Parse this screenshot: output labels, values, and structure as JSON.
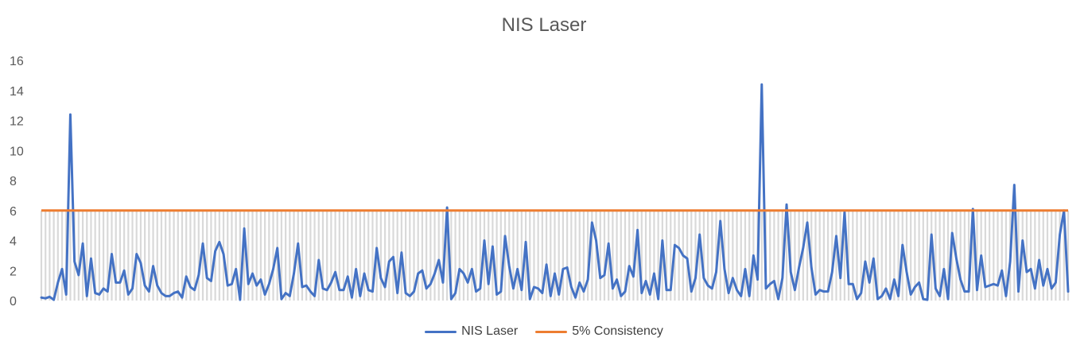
{
  "chart_data": {
    "type": "line",
    "title": "NIS Laser",
    "xlabel": "",
    "ylabel": "",
    "ylim": [
      0,
      16
    ],
    "yticks": [
      0,
      2,
      4,
      6,
      8,
      10,
      12,
      14,
      16
    ],
    "grid": false,
    "legend": "bottom",
    "colors": {
      "nis_laser": "#4472C4",
      "consistency": "#ED7D31",
      "bars": "#D9D9D9"
    },
    "series": [
      {
        "name": "NIS Laser",
        "values": [
          0.2,
          0.15,
          0.25,
          0.05,
          1.2,
          2.1,
          0.4,
          12.4,
          2.6,
          1.7,
          3.8,
          0.3,
          2.8,
          0.5,
          0.4,
          0.8,
          0.6,
          3.1,
          1.2,
          1.2,
          2.0,
          0.4,
          0.8,
          3.1,
          2.5,
          1.0,
          0.6,
          2.3,
          1.0,
          0.5,
          0.3,
          0.3,
          0.5,
          0.6,
          0.2,
          1.6,
          0.9,
          0.7,
          1.7,
          3.8,
          1.5,
          1.3,
          3.3,
          3.9,
          3.1,
          1.0,
          1.1,
          2.1,
          0.05,
          4.8,
          1.1,
          1.8,
          1.0,
          1.4,
          0.4,
          1.1,
          2.1,
          3.5,
          0.1,
          0.5,
          0.3,
          1.8,
          3.8,
          0.9,
          1.0,
          0.6,
          0.3,
          2.7,
          0.8,
          0.7,
          1.2,
          1.9,
          0.7,
          0.7,
          1.6,
          0.2,
          2.1,
          0.3,
          1.8,
          0.7,
          0.6,
          3.5,
          1.5,
          0.9,
          2.6,
          2.9,
          0.5,
          3.2,
          0.5,
          0.3,
          0.6,
          1.8,
          2.0,
          0.8,
          1.1,
          1.8,
          2.7,
          1.2,
          6.2,
          0.1,
          0.5,
          2.1,
          1.8,
          1.2,
          2.1,
          0.6,
          0.8,
          4.0,
          1.1,
          3.6,
          0.4,
          0.6,
          4.3,
          2.3,
          0.8,
          2.1,
          0.7,
          3.9,
          0.1,
          0.9,
          0.8,
          0.5,
          2.4,
          0.3,
          1.8,
          0.4,
          2.1,
          2.2,
          0.9,
          0.2,
          1.2,
          0.6,
          1.4,
          5.2,
          4.0,
          1.5,
          1.7,
          3.8,
          0.8,
          1.4,
          0.3,
          0.6,
          2.3,
          1.6,
          4.7,
          0.5,
          1.3,
          0.4,
          1.8,
          0.1,
          4.0,
          0.7,
          0.7,
          3.7,
          3.5,
          3.0,
          2.8,
          0.6,
          1.5,
          4.4,
          1.5,
          1.0,
          0.8,
          1.9,
          5.3,
          2.1,
          0.5,
          1.5,
          0.7,
          0.3,
          2.1,
          0.3,
          3.0,
          1.4,
          14.4,
          0.8,
          1.1,
          1.3,
          0.1,
          1.5,
          6.4,
          1.9,
          0.7,
          2.2,
          3.5,
          5.2,
          2.2,
          0.4,
          0.7,
          0.6,
          0.6,
          1.9,
          4.3,
          1.5,
          5.9,
          1.1,
          1.1,
          0.1,
          0.5,
          2.6,
          1.2,
          2.8,
          0.1,
          0.3,
          0.8,
          0.1,
          1.4,
          0.3,
          3.7,
          1.9,
          0.4,
          0.9,
          1.2,
          0.1,
          0.05,
          4.4,
          0.8,
          0.3,
          2.1,
          0.1,
          4.5,
          2.8,
          1.4,
          0.6,
          0.6,
          6.1,
          0.7,
          3.0,
          0.9,
          1.0,
          1.1,
          1.0,
          2.0,
          0.3,
          2.6,
          7.7,
          0.6,
          4.0,
          1.9,
          2.1,
          0.8,
          2.7,
          1.0,
          2.1,
          0.8,
          1.2,
          4.4,
          6.0,
          0.6
        ]
      },
      {
        "name": "5% Consistency",
        "value": 6
      }
    ]
  }
}
